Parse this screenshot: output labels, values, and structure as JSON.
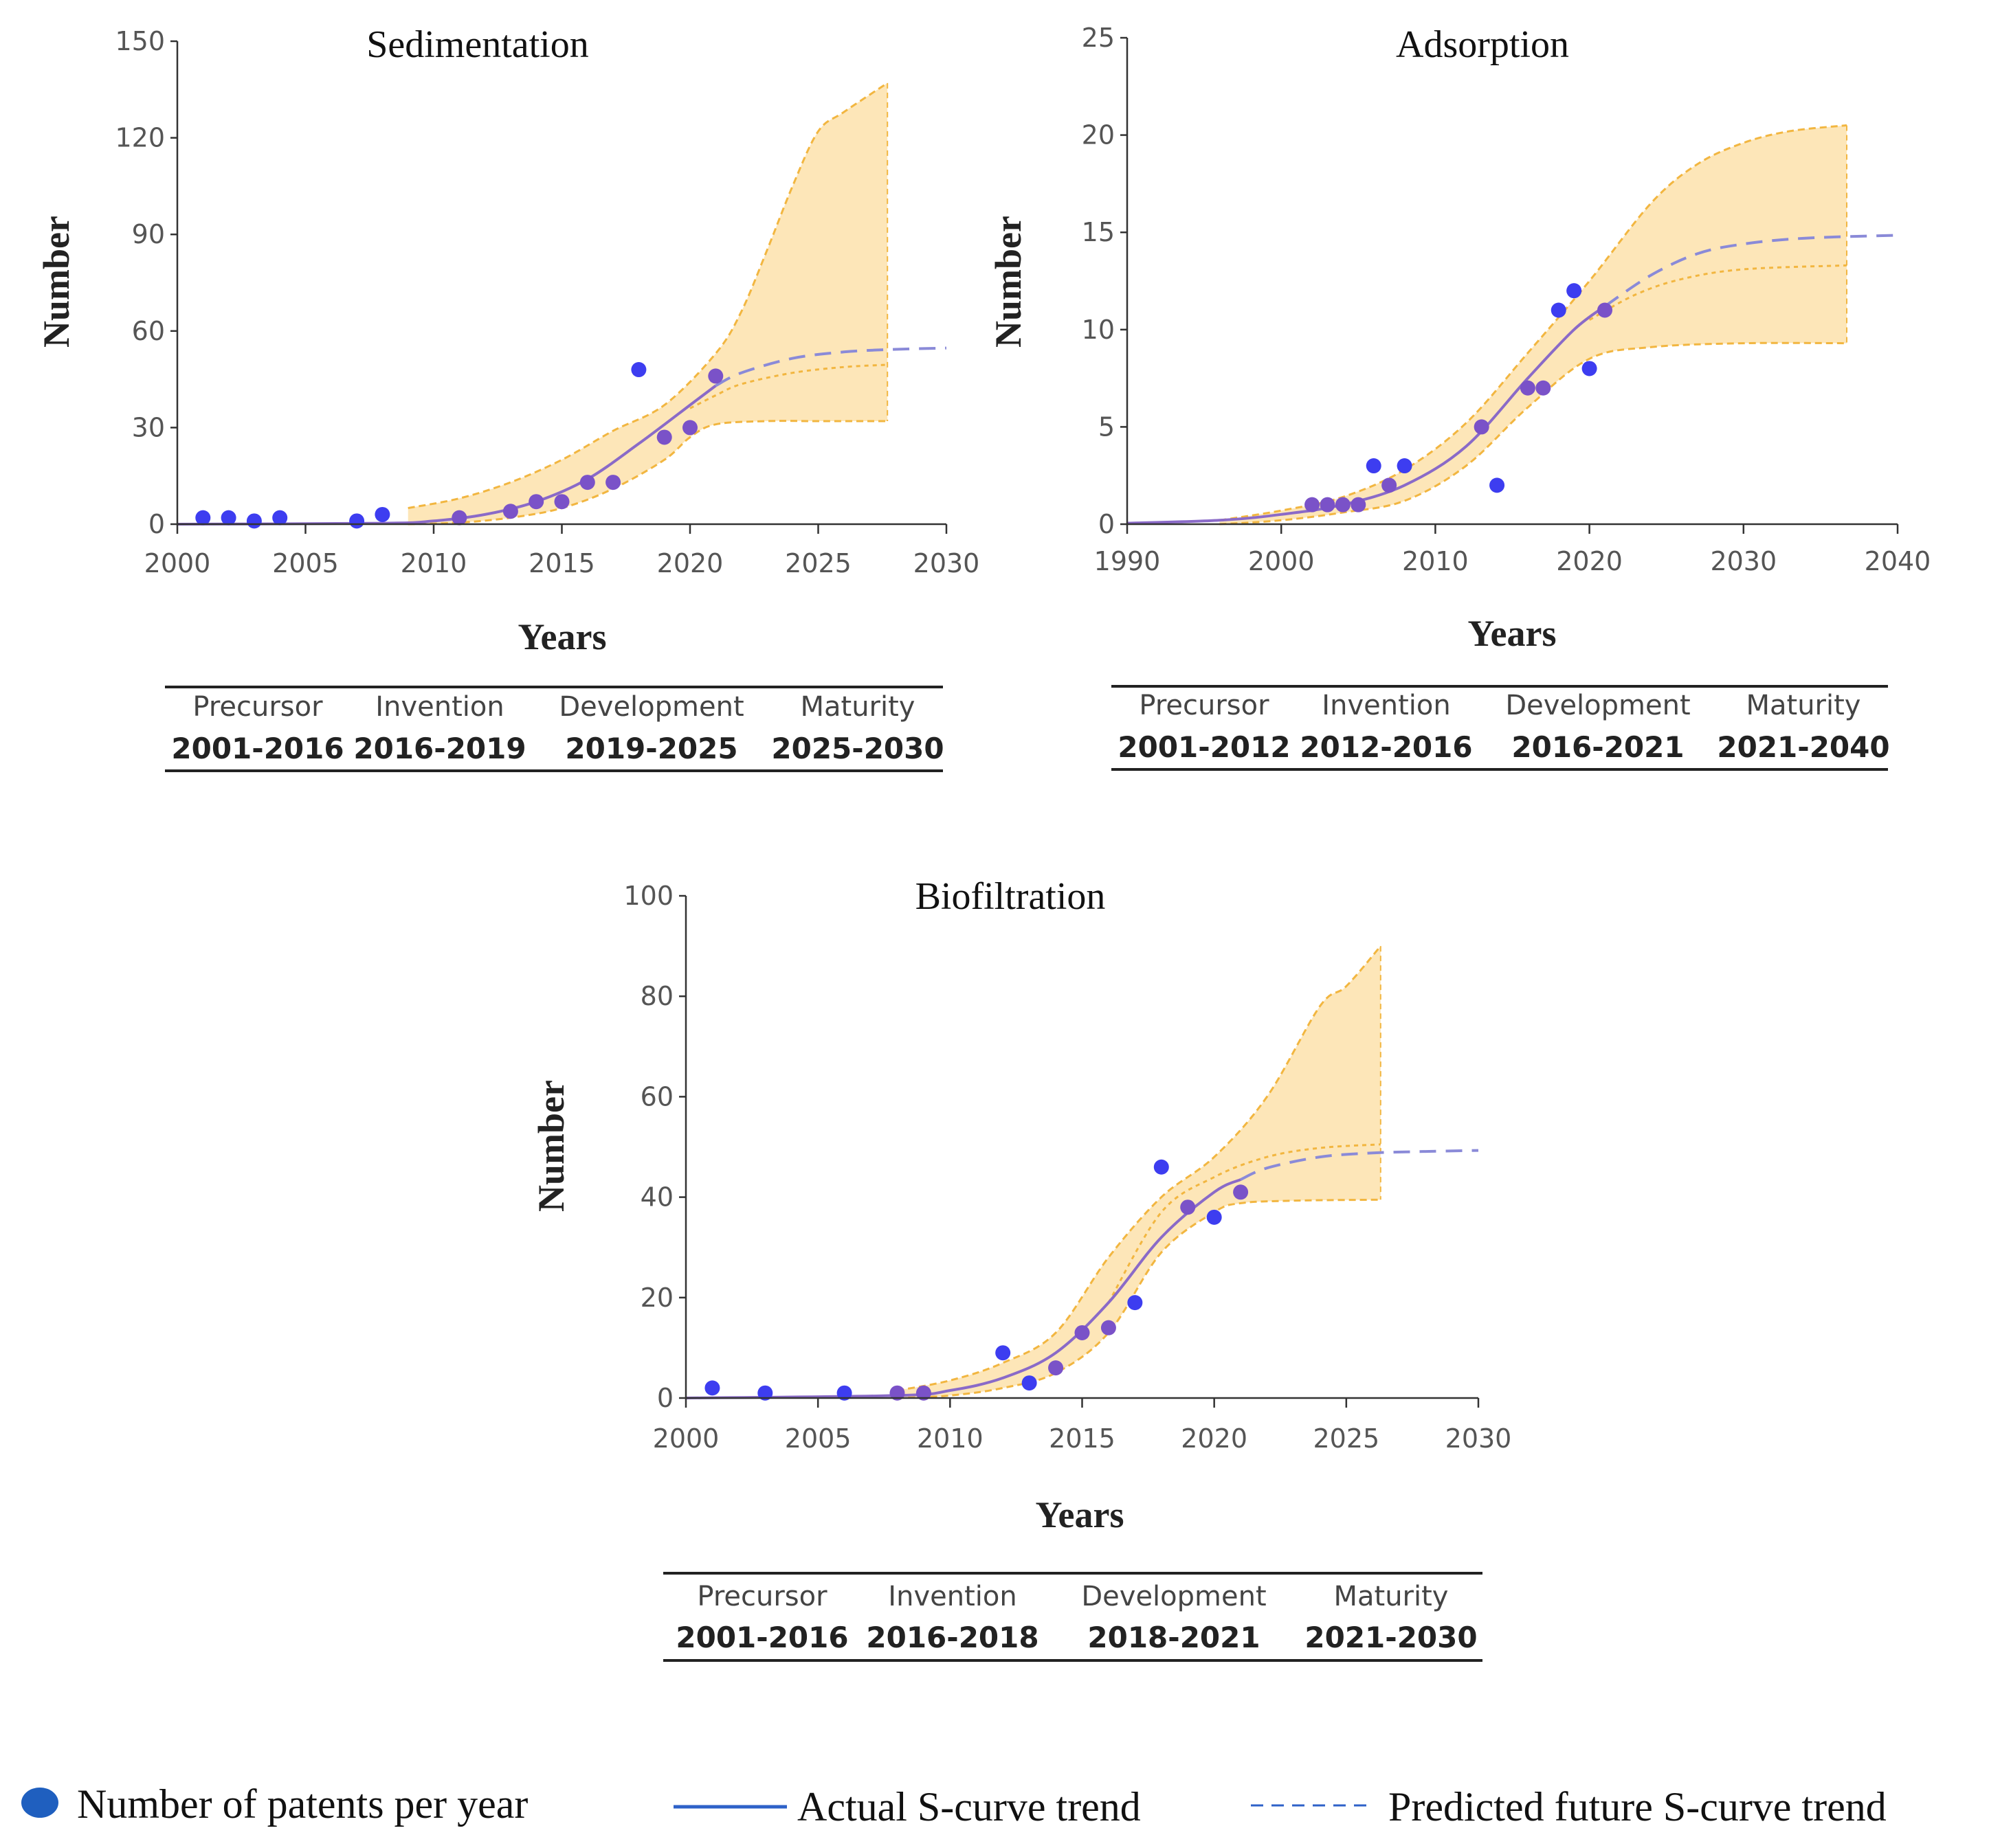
{
  "chart_data": [
    {
      "type": "scatter",
      "title": "Sedimentation",
      "xlabel": "Years",
      "ylabel": "Number",
      "xlim": [
        2000,
        2030
      ],
      "ylim": [
        0,
        150
      ],
      "x_ticks": [
        "2000",
        "2005",
        "2010",
        "2015",
        "2020",
        "2025",
        "2030"
      ],
      "y_ticks": [
        "0",
        "30",
        "60",
        "90",
        "120",
        "150"
      ],
      "points": [
        {
          "x": 2001,
          "y": 2
        },
        {
          "x": 2002,
          "y": 2
        },
        {
          "x": 2003,
          "y": 1
        },
        {
          "x": 2004,
          "y": 2
        },
        {
          "x": 2007,
          "y": 1
        },
        {
          "x": 2008,
          "y": 3
        },
        {
          "x": 2011,
          "y": 2
        },
        {
          "x": 2013,
          "y": 4
        },
        {
          "x": 2014,
          "y": 7
        },
        {
          "x": 2015,
          "y": 7
        },
        {
          "x": 2016,
          "y": 13
        },
        {
          "x": 2017,
          "y": 13
        },
        {
          "x": 2018,
          "y": 48
        },
        {
          "x": 2019,
          "y": 27
        },
        {
          "x": 2020,
          "y": 30
        },
        {
          "x": 2021,
          "y": 46
        }
      ],
      "actual_curve": [
        {
          "x": 2000,
          "y": 0
        },
        {
          "x": 2008,
          "y": 0.3
        },
        {
          "x": 2010,
          "y": 1
        },
        {
          "x": 2012,
          "y": 3
        },
        {
          "x": 2014,
          "y": 7
        },
        {
          "x": 2016,
          "y": 14
        },
        {
          "x": 2018,
          "y": 25
        },
        {
          "x": 2020,
          "y": 37
        },
        {
          "x": 2021,
          "y": 43
        }
      ],
      "predicted_curve": [
        {
          "x": 2021,
          "y": 43
        },
        {
          "x": 2022,
          "y": 47
        },
        {
          "x": 2024,
          "y": 51.5
        },
        {
          "x": 2026,
          "y": 53.5
        },
        {
          "x": 2028,
          "y": 54.3
        },
        {
          "x": 2030,
          "y": 54.7
        }
      ],
      "band_upper": [
        {
          "x": 2009,
          "y": 5
        },
        {
          "x": 2011,
          "y": 8
        },
        {
          "x": 2013,
          "y": 13
        },
        {
          "x": 2015,
          "y": 20
        },
        {
          "x": 2017,
          "y": 29
        },
        {
          "x": 2019,
          "y": 37
        },
        {
          "x": 2021,
          "y": 53
        },
        {
          "x": 2022,
          "y": 66
        },
        {
          "x": 2023,
          "y": 85
        },
        {
          "x": 2024,
          "y": 105
        },
        {
          "x": 2025,
          "y": 122
        },
        {
          "x": 2026,
          "y": 128
        },
        {
          "x": 2027.7,
          "y": 137
        }
      ],
      "band_lower": [
        {
          "x": 2009,
          "y": 0
        },
        {
          "x": 2011,
          "y": 0.5
        },
        {
          "x": 2013,
          "y": 2
        },
        {
          "x": 2015,
          "y": 5
        },
        {
          "x": 2017,
          "y": 11
        },
        {
          "x": 2019,
          "y": 20
        },
        {
          "x": 2020,
          "y": 27
        },
        {
          "x": 2021,
          "y": 31
        },
        {
          "x": 2023,
          "y": 32
        },
        {
          "x": 2025,
          "y": 32
        },
        {
          "x": 2027.7,
          "y": 32
        }
      ],
      "band_mid": [
        {
          "x": 2020,
          "y": 36
        },
        {
          "x": 2021,
          "y": 40
        },
        {
          "x": 2022,
          "y": 43.5
        },
        {
          "x": 2024,
          "y": 47
        },
        {
          "x": 2026,
          "y": 48.8
        },
        {
          "x": 2027.7,
          "y": 49.5
        }
      ],
      "stages": [
        {
          "name": "Precursor",
          "range": "2001-2016"
        },
        {
          "name": "Invention",
          "range": "2016-2019"
        },
        {
          "name": "Development",
          "range": "2019-2025"
        },
        {
          "name": "Maturity",
          "range": "2025-2030"
        }
      ]
    },
    {
      "type": "scatter",
      "title": "Adsorption",
      "xlabel": "Years",
      "ylabel": "Number",
      "xlim": [
        1990,
        2040
      ],
      "ylim": [
        0,
        25
      ],
      "x_ticks": [
        "1990",
        "2000",
        "2010",
        "2020",
        "2030",
        "2040"
      ],
      "y_ticks": [
        "0",
        "5",
        "10",
        "15",
        "20",
        "25"
      ],
      "points": [
        {
          "x": 2002,
          "y": 1
        },
        {
          "x": 2003,
          "y": 1
        },
        {
          "x": 2004,
          "y": 1
        },
        {
          "x": 2005,
          "y": 1
        },
        {
          "x": 2006,
          "y": 3
        },
        {
          "x": 2007,
          "y": 2
        },
        {
          "x": 2008,
          "y": 3
        },
        {
          "x": 2013,
          "y": 5
        },
        {
          "x": 2014,
          "y": 2
        },
        {
          "x": 2016,
          "y": 7
        },
        {
          "x": 2017,
          "y": 7
        },
        {
          "x": 2018,
          "y": 11
        },
        {
          "x": 2019,
          "y": 12
        },
        {
          "x": 2020,
          "y": 8
        },
        {
          "x": 2021,
          "y": 11
        }
      ],
      "actual_curve": [
        {
          "x": 1990,
          "y": 0.05
        },
        {
          "x": 1996,
          "y": 0.2
        },
        {
          "x": 2000,
          "y": 0.5
        },
        {
          "x": 2004,
          "y": 1
        },
        {
          "x": 2008,
          "y": 2
        },
        {
          "x": 2012,
          "y": 4
        },
        {
          "x": 2016,
          "y": 7.5
        },
        {
          "x": 2019,
          "y": 10
        },
        {
          "x": 2021,
          "y": 11.2
        }
      ],
      "predicted_curve": [
        {
          "x": 2021,
          "y": 11.2
        },
        {
          "x": 2024,
          "y": 12.8
        },
        {
          "x": 2027,
          "y": 13.9
        },
        {
          "x": 2030,
          "y": 14.4
        },
        {
          "x": 2034,
          "y": 14.7
        },
        {
          "x": 2040,
          "y": 14.85
        }
      ],
      "band_upper": [
        {
          "x": 1996,
          "y": 0.2
        },
        {
          "x": 2000,
          "y": 0.7
        },
        {
          "x": 2004,
          "y": 1.4
        },
        {
          "x": 2008,
          "y": 2.8
        },
        {
          "x": 2012,
          "y": 5.2
        },
        {
          "x": 2016,
          "y": 8.8
        },
        {
          "x": 2020,
          "y": 12.5
        },
        {
          "x": 2024,
          "y": 16.5
        },
        {
          "x": 2027,
          "y": 18.5
        },
        {
          "x": 2030,
          "y": 19.6
        },
        {
          "x": 2033,
          "y": 20.2
        },
        {
          "x": 2036.7,
          "y": 20.5
        }
      ],
      "band_lower": [
        {
          "x": 1996,
          "y": 0
        },
        {
          "x": 2000,
          "y": 0.2
        },
        {
          "x": 2004,
          "y": 0.6
        },
        {
          "x": 2008,
          "y": 1.2
        },
        {
          "x": 2012,
          "y": 3
        },
        {
          "x": 2016,
          "y": 6
        },
        {
          "x": 2020,
          "y": 8.5
        },
        {
          "x": 2024,
          "y": 9.1
        },
        {
          "x": 2030,
          "y": 9.3
        },
        {
          "x": 2036.7,
          "y": 9.3
        }
      ],
      "band_mid": [
        {
          "x": 2020,
          "y": 10.5
        },
        {
          "x": 2023,
          "y": 11.8
        },
        {
          "x": 2026,
          "y": 12.6
        },
        {
          "x": 2030,
          "y": 13.1
        },
        {
          "x": 2036.7,
          "y": 13.3
        }
      ],
      "stages": [
        {
          "name": "Precursor",
          "range": "2001-2012"
        },
        {
          "name": "Invention",
          "range": "2012-2016"
        },
        {
          "name": "Development",
          "range": "2016-2021"
        },
        {
          "name": "Maturity",
          "range": "2021-2040"
        }
      ]
    },
    {
      "type": "scatter",
      "title": "Biofiltration",
      "xlabel": "Years",
      "ylabel": "Number",
      "xlim": [
        2000,
        2030
      ],
      "ylim": [
        0,
        100
      ],
      "x_ticks": [
        "2000",
        "2005",
        "2010",
        "2015",
        "2020",
        "2025",
        "2030"
      ],
      "y_ticks": [
        "0",
        "20",
        "40",
        "60",
        "80",
        "100"
      ],
      "points": [
        {
          "x": 2001,
          "y": 2
        },
        {
          "x": 2003,
          "y": 1
        },
        {
          "x": 2006,
          "y": 1
        },
        {
          "x": 2008,
          "y": 1
        },
        {
          "x": 2009,
          "y": 1
        },
        {
          "x": 2012,
          "y": 9
        },
        {
          "x": 2013,
          "y": 3
        },
        {
          "x": 2014,
          "y": 6
        },
        {
          "x": 2015,
          "y": 13
        },
        {
          "x": 2016,
          "y": 14
        },
        {
          "x": 2017,
          "y": 19
        },
        {
          "x": 2018,
          "y": 46
        },
        {
          "x": 2019,
          "y": 38
        },
        {
          "x": 2020,
          "y": 36
        },
        {
          "x": 2021,
          "y": 41
        }
      ],
      "actual_curve": [
        {
          "x": 2000,
          "y": 0
        },
        {
          "x": 2008,
          "y": 0.5
        },
        {
          "x": 2010,
          "y": 1.5
        },
        {
          "x": 2012,
          "y": 4
        },
        {
          "x": 2014,
          "y": 9
        },
        {
          "x": 2016,
          "y": 19
        },
        {
          "x": 2018,
          "y": 32
        },
        {
          "x": 2020,
          "y": 41
        },
        {
          "x": 2021,
          "y": 43.5
        }
      ],
      "predicted_curve": [
        {
          "x": 2021,
          "y": 43.5
        },
        {
          "x": 2022,
          "y": 45.8
        },
        {
          "x": 2024,
          "y": 48
        },
        {
          "x": 2026,
          "y": 48.8
        },
        {
          "x": 2028,
          "y": 49.1
        },
        {
          "x": 2030,
          "y": 49.3
        }
      ],
      "band_upper": [
        {
          "x": 2008,
          "y": 1.5
        },
        {
          "x": 2010,
          "y": 3.5
        },
        {
          "x": 2012,
          "y": 7
        },
        {
          "x": 2014,
          "y": 13
        },
        {
          "x": 2016,
          "y": 28
        },
        {
          "x": 2018,
          "y": 40
        },
        {
          "x": 2020,
          "y": 48
        },
        {
          "x": 2022,
          "y": 60
        },
        {
          "x": 2024,
          "y": 78
        },
        {
          "x": 2025,
          "y": 82
        },
        {
          "x": 2026.3,
          "y": 90
        }
      ],
      "band_lower": [
        {
          "x": 2008,
          "y": 0
        },
        {
          "x": 2010,
          "y": 0.5
        },
        {
          "x": 2012,
          "y": 2
        },
        {
          "x": 2014,
          "y": 5
        },
        {
          "x": 2016,
          "y": 13
        },
        {
          "x": 2018,
          "y": 29
        },
        {
          "x": 2020,
          "y": 37
        },
        {
          "x": 2021,
          "y": 38.8
        },
        {
          "x": 2023,
          "y": 39.3
        },
        {
          "x": 2026.3,
          "y": 39.5
        }
      ],
      "band_mid": [
        {
          "x": 2016,
          "y": 19
        },
        {
          "x": 2018,
          "y": 37
        },
        {
          "x": 2020,
          "y": 44
        },
        {
          "x": 2022,
          "y": 48
        },
        {
          "x": 2024,
          "y": 49.8
        },
        {
          "x": 2026.3,
          "y": 50.5
        }
      ],
      "stages": [
        {
          "name": "Precursor",
          "range": "2001-2016"
        },
        {
          "name": "Invention",
          "range": "2016-2018"
        },
        {
          "name": "Development",
          "range": "2018-2021"
        },
        {
          "name": "Maturity",
          "range": "2021-2030"
        }
      ]
    }
  ],
  "legend": {
    "points_label": "Number of patents per year",
    "actual_label": "Actual S-curve trend",
    "predicted_label": "Predicted future S-curve trend"
  },
  "colors": {
    "band_fill": "#fde6b8",
    "band_edge": "#f2b640",
    "point": "#3d3df0",
    "point_in_band": "#7a52c8",
    "curve": "#8a6ac8",
    "predicted": "#8a8ad8",
    "legend_marker": "#1f5fbf",
    "legend_line": "#2e62c8",
    "axis": "#333333"
  }
}
